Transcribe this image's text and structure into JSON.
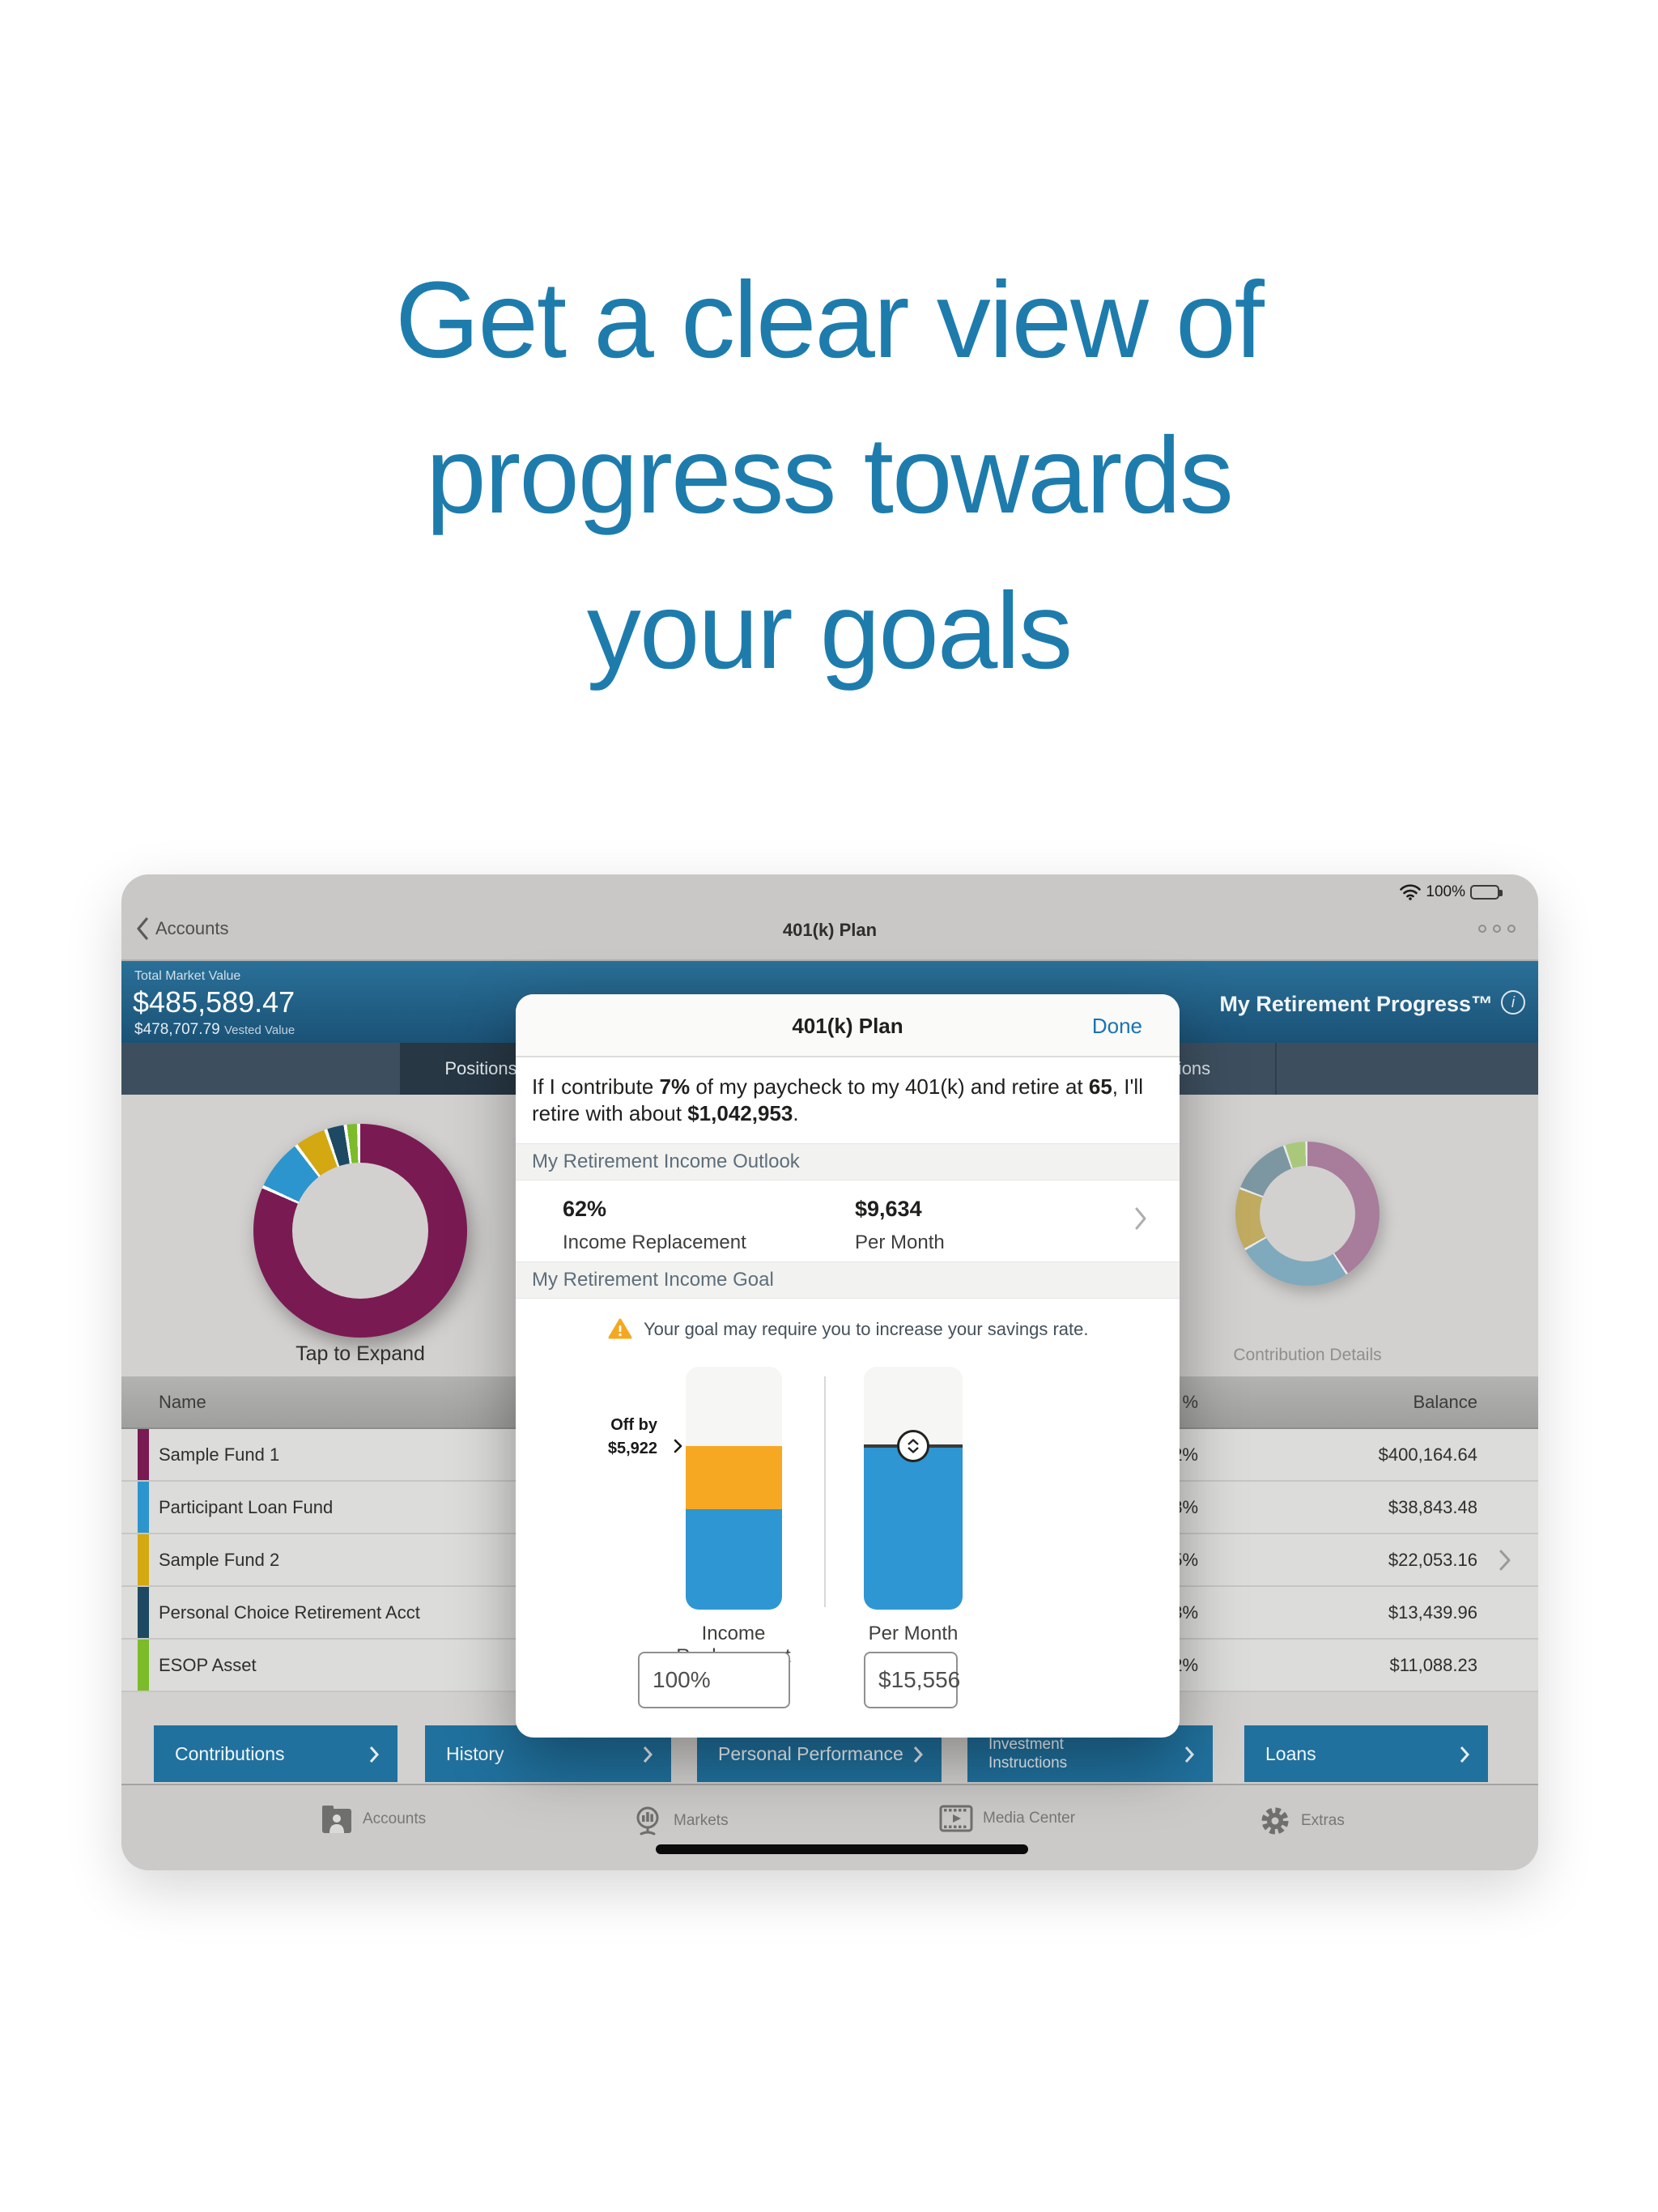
{
  "headline": {
    "line1": "Get a clear view of",
    "line2": "progress towards",
    "line3": "your goals"
  },
  "status_bar": {
    "battery_pct": "100%"
  },
  "nav_bar": {
    "back_label": "Accounts",
    "title": "401(k) Plan"
  },
  "account_header": {
    "total_label": "Total Market Value",
    "total_value": "$485,589.47",
    "vested_value": "$478,707.79",
    "vested_label": "Vested Value",
    "progress_title": "My Retirement Progress™"
  },
  "tab_strip": {
    "positions": "Positions",
    "more_actions": "More Actions"
  },
  "allocation_donut": {
    "caption": "Tap to Expand"
  },
  "contribution_donut": {
    "caption": "Contribution Details"
  },
  "donut_segments": {
    "allocation": [
      {
        "label": "Sample Fund 1",
        "pct": 82,
        "color": "#7A1A53"
      },
      {
        "label": "Participant Loan Fund",
        "pct": 8,
        "color": "#2C95CE"
      },
      {
        "label": "Sample Fund 2",
        "pct": 5,
        "color": "#D3A811"
      },
      {
        "label": "Personal Choice Retirement Acct",
        "pct": 3,
        "color": "#1E4962"
      },
      {
        "label": "ESOP Asset",
        "pct": 2,
        "color": "#7CBB2A"
      }
    ],
    "contribution": [
      {
        "pct": 41,
        "color": "#A87C9B"
      },
      {
        "pct": 26,
        "color": "#7FA9BD"
      },
      {
        "pct": 14,
        "color": "#C0AB61"
      },
      {
        "pct": 14,
        "color": "#7C97A1"
      },
      {
        "pct": 5,
        "color": "#A9C87B"
      }
    ]
  },
  "positions_table": {
    "headers": {
      "name": "Name",
      "pct": "%",
      "balance": "Balance"
    },
    "rows": [
      {
        "name": "Sample Fund 1",
        "pct": "82%",
        "balance": "$400,164.64",
        "color": "#7A1A53"
      },
      {
        "name": "Participant Loan Fund",
        "pct": "8%",
        "balance": "$38,843.48",
        "color": "#2C95CE"
      },
      {
        "name": "Sample Fund 2",
        "pct": "5%",
        "balance": "$22,053.16",
        "color": "#D3A811",
        "has_chevron": true
      },
      {
        "name": "Personal Choice Retirement Acct",
        "pct": "3%",
        "balance": "$13,439.96",
        "color": "#1E4962"
      },
      {
        "name": "ESOP Asset",
        "pct": "2%",
        "balance": "$11,088.23",
        "color": "#7CBB2A"
      }
    ]
  },
  "action_buttons": {
    "contributions": "Contributions",
    "history": "History",
    "personal_performance": "Personal Performance",
    "investment_instructions_line1": "Investment",
    "investment_instructions_line2": "Instructions",
    "loans": "Loans"
  },
  "bottom_tab_bar": {
    "accounts": "Accounts",
    "markets": "Markets",
    "media_center": "Media Center",
    "extras": "Extras"
  },
  "modal": {
    "title": "401(k) Plan",
    "done_label": "Done",
    "statement": {
      "part1": "If I contribute ",
      "bold1": "7%",
      "part2": " of my paycheck to my 401(k) and retire at ",
      "bold2": "65",
      "part3": ", I'll retire with about ",
      "bold3": "$1,042,953",
      "part4": "."
    },
    "outlook_section": "My Retirement Income Outlook",
    "outlook": {
      "replacement_value": "62%",
      "replacement_label": "Income Replacement",
      "monthly_value": "$9,634",
      "monthly_label": "Per Month"
    },
    "goal_section": "My Retirement Income Goal",
    "goal": {
      "warning": "Your goal may require you to increase your savings rate.",
      "off_by_label": "Off by",
      "off_by_value": "$5,922",
      "bar1_label": "Income Replacement",
      "bar2_label": "Per Month",
      "replacement_input": "100%",
      "monthly_input": "$15,556",
      "bars": {
        "income_replacement": {
          "empty_pct": 32.7,
          "shortfall_pct": 26,
          "funded_pct": 41.3
        },
        "per_month": {
          "empty_pct": 32.7,
          "funded_pct": 67.3
        }
      }
    }
  },
  "colors": {
    "headline_blue": "#1E7CAD",
    "header_blue": "#215E84",
    "button_blue": "#20719E",
    "link_blue": "#1874B4",
    "bar_orange": "#F7A823",
    "bar_blue": "#2E96D3",
    "warning_orange": "#F5A81F"
  }
}
